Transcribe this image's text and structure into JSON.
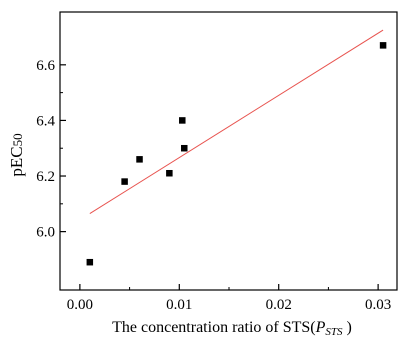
{
  "chart_data": {
    "type": "scatter",
    "xlabel": {
      "prefix": "The concentration ratio of STS(",
      "var": "P",
      "sub": "STS",
      "suffix": " )"
    },
    "ylabel": {
      "prefix": "pEC",
      "sub": "50"
    },
    "xlim": [
      -0.002,
      0.032
    ],
    "ylim": [
      5.79,
      6.79
    ],
    "x_ticks": [
      0.0,
      0.01,
      0.02,
      0.03
    ],
    "x_tick_labels": [
      "0.00",
      "0.01",
      "0.02",
      "0.03"
    ],
    "y_ticks": [
      6.0,
      6.2,
      6.4,
      6.6
    ],
    "y_tick_labels": [
      "6.0",
      "6.2",
      "6.4",
      "6.6"
    ],
    "grid": false,
    "points": [
      {
        "x": 0.001,
        "y": 5.89
      },
      {
        "x": 0.0045,
        "y": 6.18
      },
      {
        "x": 0.006,
        "y": 6.26
      },
      {
        "x": 0.009,
        "y": 6.21
      },
      {
        "x": 0.0103,
        "y": 6.4
      },
      {
        "x": 0.0105,
        "y": 6.3
      },
      {
        "x": 0.0305,
        "y": 6.67
      }
    ],
    "fit_line": {
      "x": [
        0.001,
        0.0305
      ],
      "y": [
        6.065,
        6.725
      ],
      "color": "#e8534f"
    },
    "marker_color": "#000000"
  }
}
